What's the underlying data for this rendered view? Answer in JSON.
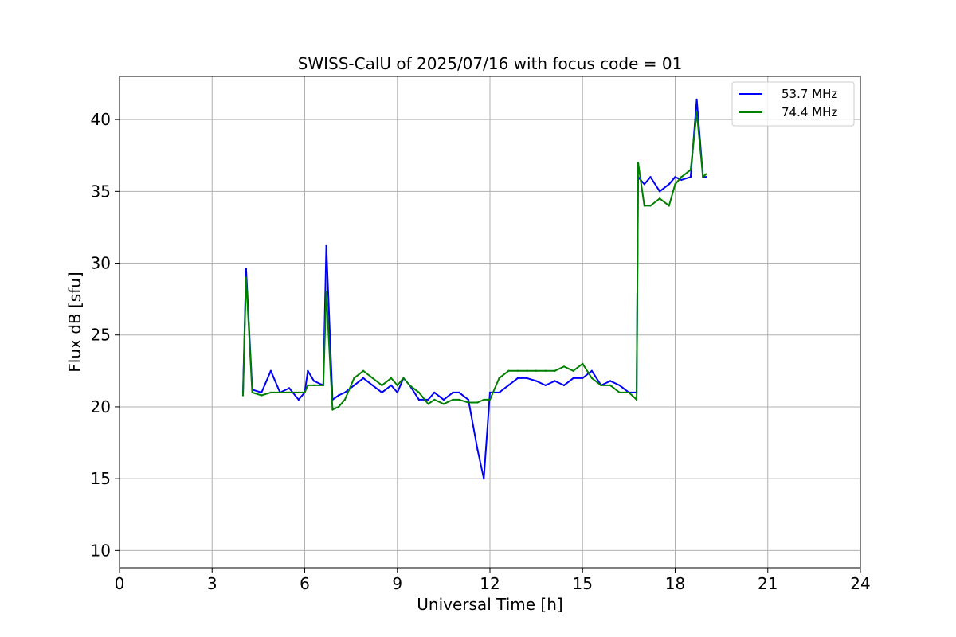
{
  "chart_data": {
    "type": "line",
    "title": "SWISS-CalU of 2025/07/16 with focus code = 01",
    "xlabel": "Universal Time [h]",
    "ylabel": "Flux dB [sfu]",
    "xlim": [
      0,
      24
    ],
    "ylim": [
      8.8,
      43
    ],
    "xticks": [
      0,
      3,
      6,
      9,
      12,
      15,
      18,
      21,
      24
    ],
    "yticks": [
      10,
      15,
      20,
      25,
      30,
      35,
      40
    ],
    "grid": true,
    "legend_position": "top-right",
    "series": [
      {
        "name": "53.7 MHz",
        "color": "#0000ff",
        "x": [
          4.0,
          4.1,
          4.3,
          4.6,
          4.9,
          5.2,
          5.5,
          5.8,
          6.0,
          6.1,
          6.3,
          6.6,
          6.7,
          6.9,
          7.1,
          7.3,
          7.6,
          7.9,
          8.2,
          8.5,
          8.8,
          9.0,
          9.2,
          9.4,
          9.7,
          10.0,
          10.2,
          10.5,
          10.8,
          11.0,
          11.3,
          11.6,
          11.8,
          12.0,
          12.3,
          12.6,
          12.9,
          13.2,
          13.5,
          13.8,
          14.1,
          14.4,
          14.7,
          15.0,
          15.3,
          15.6,
          15.9,
          16.2,
          16.5,
          16.75,
          16.8,
          17.0,
          17.2,
          17.5,
          17.8,
          18.0,
          18.2,
          18.5,
          18.7,
          18.9,
          19.0
        ],
        "y": [
          21.0,
          29.6,
          21.2,
          21.0,
          22.5,
          21.0,
          21.3,
          20.5,
          21.0,
          22.5,
          21.8,
          21.5,
          31.2,
          20.5,
          20.8,
          21.0,
          21.5,
          22.0,
          21.5,
          21.0,
          21.5,
          21.0,
          22.0,
          21.5,
          20.5,
          20.5,
          21.0,
          20.5,
          21.0,
          21.0,
          20.5,
          17.0,
          15.0,
          21.0,
          21.0,
          21.5,
          22.0,
          22.0,
          21.8,
          21.5,
          21.8,
          21.5,
          22.0,
          22.0,
          22.5,
          21.5,
          21.8,
          21.5,
          21.0,
          21.0,
          36.0,
          35.5,
          36.0,
          35.0,
          35.5,
          36.0,
          35.8,
          36.0,
          41.4,
          36.0,
          36.0
        ]
      },
      {
        "name": "74.4 MHz",
        "color": "#008000",
        "x": [
          4.0,
          4.1,
          4.3,
          4.6,
          4.9,
          5.2,
          5.5,
          5.8,
          6.0,
          6.1,
          6.3,
          6.6,
          6.7,
          6.9,
          7.1,
          7.3,
          7.6,
          7.9,
          8.2,
          8.5,
          8.8,
          9.0,
          9.2,
          9.4,
          9.7,
          10.0,
          10.2,
          10.5,
          10.8,
          11.0,
          11.3,
          11.6,
          11.8,
          12.0,
          12.3,
          12.6,
          12.9,
          13.2,
          13.5,
          13.8,
          14.1,
          14.4,
          14.7,
          15.0,
          15.3,
          15.6,
          15.9,
          16.2,
          16.5,
          16.75,
          16.8,
          17.0,
          17.2,
          17.5,
          17.8,
          18.0,
          18.2,
          18.5,
          18.7,
          18.9,
          19.0
        ],
        "y": [
          20.8,
          29.0,
          21.0,
          20.8,
          21.0,
          21.0,
          21.0,
          21.0,
          21.0,
          21.5,
          21.5,
          21.5,
          28.0,
          19.8,
          20.0,
          20.5,
          22.0,
          22.5,
          22.0,
          21.5,
          22.0,
          21.5,
          22.0,
          21.5,
          21.0,
          20.2,
          20.5,
          20.2,
          20.5,
          20.5,
          20.3,
          20.3,
          20.5,
          20.5,
          22.0,
          22.5,
          22.5,
          22.5,
          22.5,
          22.5,
          22.5,
          22.8,
          22.5,
          23.0,
          22.0,
          21.5,
          21.5,
          21.0,
          21.0,
          20.5,
          37.0,
          34.0,
          34.0,
          34.5,
          34.0,
          35.5,
          36.0,
          36.5,
          40.5,
          36.0,
          36.2
        ]
      }
    ]
  }
}
